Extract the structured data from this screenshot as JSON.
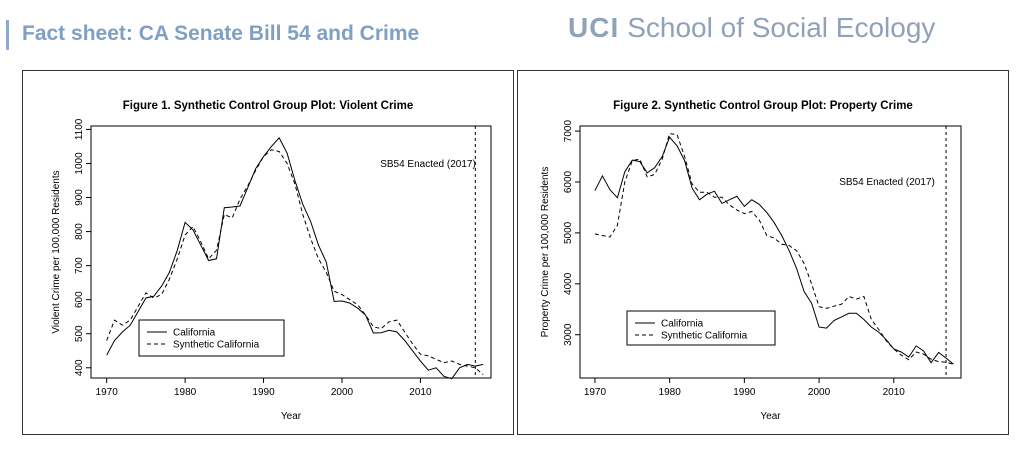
{
  "header": {
    "title": "Fact sheet: CA Senate Bill 54 and Crime",
    "brand_uci": "UCI",
    "brand_school": "School of Social Ecology"
  },
  "colors": {
    "header_title": "#7fa0c3",
    "brand": "#8fa2b8"
  },
  "chart_data": [
    {
      "type": "line",
      "title": "Figure 1. Synthetic Control Group Plot: Violent Crime",
      "xlabel": "Year",
      "ylabel": "Violent Crime per 100,000 Residents",
      "xlim": [
        1968,
        2019
      ],
      "ylim": [
        370,
        1110
      ],
      "xticks": [
        1970,
        1980,
        1990,
        2000,
        2010
      ],
      "yticks": [
        400,
        500,
        600,
        700,
        800,
        900,
        1000,
        1100
      ],
      "annotation": {
        "text": "SB54 Enacted (2017)",
        "x": 2017
      },
      "legend": {
        "position": "bottom-left"
      },
      "x": [
        1970,
        1971,
        1972,
        1973,
        1974,
        1975,
        1976,
        1977,
        1978,
        1979,
        1980,
        1981,
        1982,
        1983,
        1984,
        1985,
        1986,
        1987,
        1988,
        1989,
        1990,
        1991,
        1992,
        1993,
        1994,
        1995,
        1996,
        1997,
        1998,
        1999,
        2000,
        2001,
        2002,
        2003,
        2004,
        2005,
        2006,
        2007,
        2008,
        2009,
        2010,
        2011,
        2012,
        2013,
        2014,
        2015,
        2016,
        2017,
        2018
      ],
      "series": [
        {
          "name": "California",
          "dash": "solid",
          "values": [
            437,
            480,
            505,
            525,
            565,
            605,
            610,
            640,
            680,
            745,
            827,
            805,
            760,
            715,
            720,
            870,
            872,
            875,
            930,
            985,
            1020,
            1050,
            1075,
            1030,
            950,
            880,
            830,
            760,
            710,
            595,
            596,
            590,
            575,
            555,
            502,
            503,
            510,
            505,
            480,
            450,
            420,
            393,
            400,
            375,
            368,
            400,
            410,
            405,
            410
          ]
        },
        {
          "name": "Synthetic California",
          "dash": "dashed",
          "values": [
            480,
            540,
            525,
            540,
            580,
            620,
            605,
            615,
            660,
            720,
            790,
            815,
            770,
            720,
            745,
            850,
            840,
            895,
            935,
            980,
            1020,
            1040,
            1035,
            1000,
            940,
            850,
            780,
            720,
            680,
            625,
            615,
            600,
            585,
            555,
            520,
            515,
            535,
            540,
            505,
            470,
            440,
            435,
            425,
            415,
            420,
            410,
            405,
            400,
            380
          ]
        }
      ]
    },
    {
      "type": "line",
      "title": "Figure 2. Synthetic Control Group Plot: Property Crime",
      "xlabel": "Year",
      "ylabel": "Property Crime per 100,000 Residents",
      "xlim": [
        1968,
        2019
      ],
      "ylim": [
        2150,
        7100
      ],
      "xticks": [
        1970,
        1980,
        1990,
        2000,
        2010
      ],
      "yticks": [
        3000,
        4000,
        5000,
        6000,
        7000
      ],
      "annotation": {
        "text": "SB54 Enacted (2017)",
        "x": 2017
      },
      "legend": {
        "position": "bottom-left"
      },
      "x": [
        1970,
        1971,
        1972,
        1973,
        1974,
        1975,
        1976,
        1977,
        1978,
        1979,
        1980,
        1981,
        1982,
        1983,
        1984,
        1985,
        1986,
        1987,
        1988,
        1989,
        1990,
        1991,
        1992,
        1993,
        1994,
        1995,
        1996,
        1997,
        1998,
        1999,
        2000,
        2001,
        2002,
        2003,
        2004,
        2005,
        2006,
        2007,
        2008,
        2009,
        2010,
        2011,
        2012,
        2013,
        2014,
        2015,
        2016,
        2017,
        2018
      ],
      "series": [
        {
          "name": "California",
          "dash": "solid",
          "values": [
            5830,
            6120,
            5850,
            5690,
            6200,
            6430,
            6400,
            6180,
            6280,
            6500,
            6880,
            6710,
            6420,
            5880,
            5650,
            5760,
            5820,
            5580,
            5650,
            5720,
            5520,
            5650,
            5560,
            5400,
            5200,
            4950,
            4650,
            4300,
            3850,
            3620,
            3150,
            3130,
            3280,
            3350,
            3420,
            3420,
            3300,
            3150,
            3050,
            2900,
            2720,
            2660,
            2560,
            2780,
            2680,
            2450,
            2650,
            2540,
            2420
          ]
        },
        {
          "name": "Synthetic California",
          "dash": "dashed",
          "values": [
            4980,
            4950,
            4920,
            5150,
            6000,
            6420,
            6450,
            6100,
            6150,
            6450,
            6950,
            6930,
            6500,
            5960,
            5800,
            5800,
            5700,
            5700,
            5550,
            5450,
            5380,
            5420,
            5250,
            4950,
            4900,
            4780,
            4750,
            4650,
            4400,
            4000,
            3550,
            3520,
            3560,
            3600,
            3750,
            3700,
            3750,
            3300,
            3100,
            2880,
            2720,
            2600,
            2510,
            2660,
            2620,
            2520,
            2470,
            2460,
            2420
          ]
        }
      ]
    }
  ]
}
